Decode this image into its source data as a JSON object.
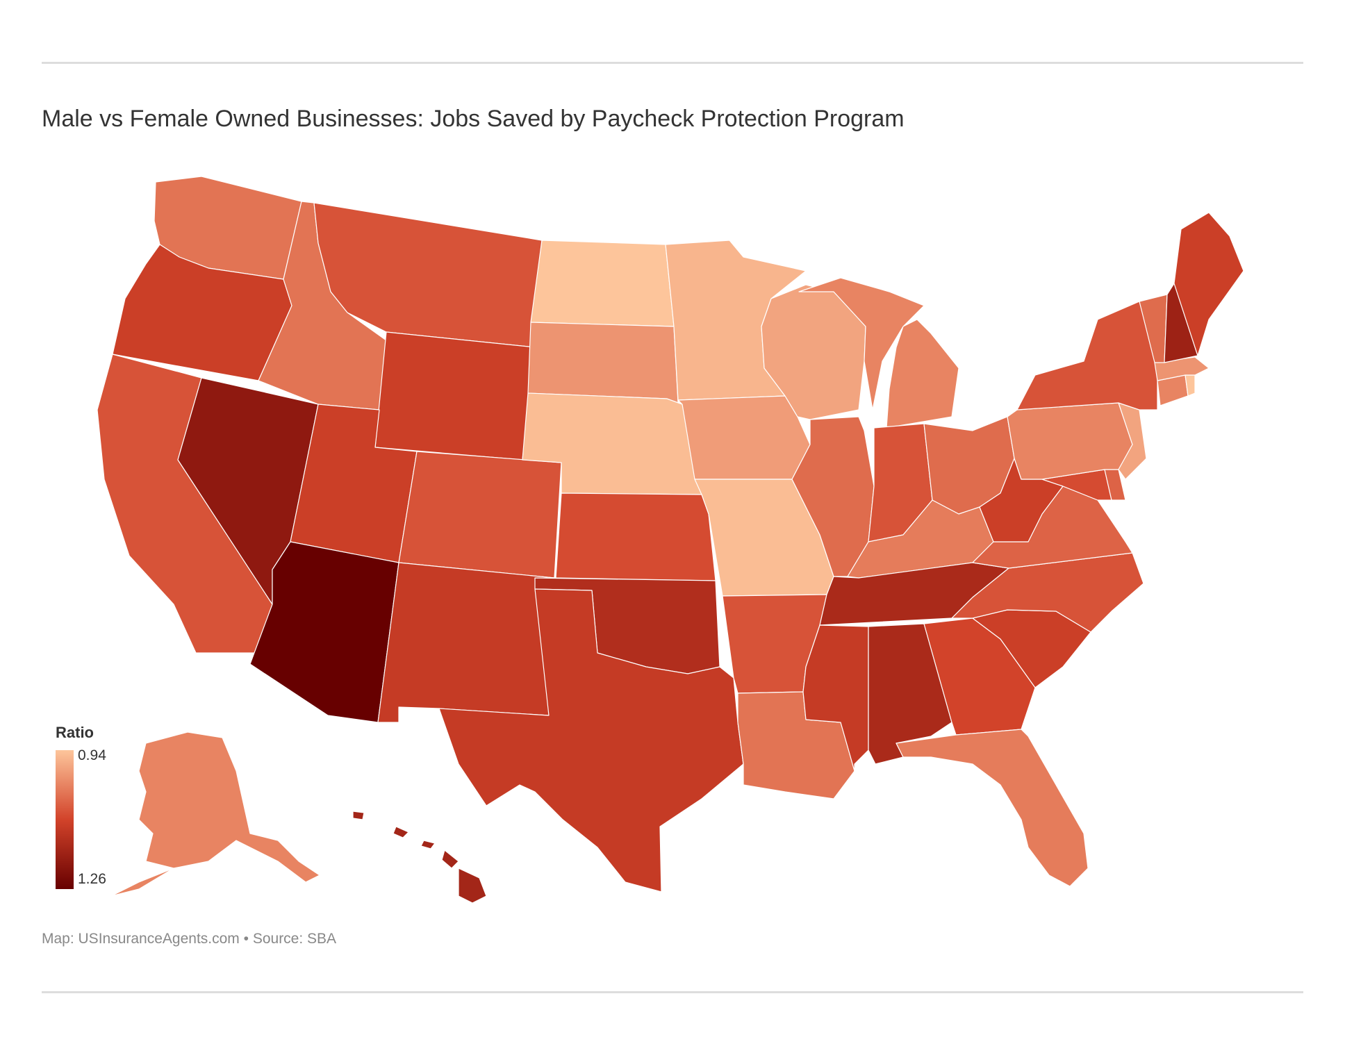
{
  "title": "Male vs Female Owned Businesses: Jobs Saved by Paycheck Protection Program",
  "source": "Map: USInsuranceAgents.com • Source: SBA",
  "legend": {
    "title": "Ratio",
    "min_label": "0.94",
    "max_label": "1.26",
    "min_color": "#fdc59b",
    "mid_color": "#d2432a",
    "max_color": "#670000"
  },
  "map_data": {
    "type": "choropleth",
    "value_name": "Ratio",
    "range": [
      0.94,
      1.26
    ],
    "states": [
      {
        "code": "WA",
        "value": 1.04
      },
      {
        "code": "OR",
        "value": 1.11
      },
      {
        "code": "CA",
        "value": 1.08
      },
      {
        "code": "NV",
        "value": 1.2
      },
      {
        "code": "ID",
        "value": 1.04
      },
      {
        "code": "MT",
        "value": 1.08
      },
      {
        "code": "WY",
        "value": 1.11
      },
      {
        "code": "UT",
        "value": 1.11
      },
      {
        "code": "AZ",
        "value": 1.26
      },
      {
        "code": "CO",
        "value": 1.08
      },
      {
        "code": "NM",
        "value": 1.12
      },
      {
        "code": "ND",
        "value": 0.94
      },
      {
        "code": "SD",
        "value": 1.0
      },
      {
        "code": "NE",
        "value": 0.95
      },
      {
        "code": "KS",
        "value": 1.09
      },
      {
        "code": "OK",
        "value": 1.15
      },
      {
        "code": "TX",
        "value": 1.12
      },
      {
        "code": "MN",
        "value": 0.96
      },
      {
        "code": "IA",
        "value": 0.99
      },
      {
        "code": "MO",
        "value": 0.95
      },
      {
        "code": "AR",
        "value": 1.08
      },
      {
        "code": "LA",
        "value": 1.04
      },
      {
        "code": "WI",
        "value": 0.98
      },
      {
        "code": "IL",
        "value": 1.05
      },
      {
        "code": "MI",
        "value": 1.02
      },
      {
        "code": "IN",
        "value": 1.08
      },
      {
        "code": "OH",
        "value": 1.05
      },
      {
        "code": "KY",
        "value": 1.03
      },
      {
        "code": "TN",
        "value": 1.16
      },
      {
        "code": "MS",
        "value": 1.12
      },
      {
        "code": "AL",
        "value": 1.16
      },
      {
        "code": "GA",
        "value": 1.1
      },
      {
        "code": "FL",
        "value": 1.03
      },
      {
        "code": "SC",
        "value": 1.11
      },
      {
        "code": "NC",
        "value": 1.08
      },
      {
        "code": "VA",
        "value": 1.06
      },
      {
        "code": "WV",
        "value": 1.11
      },
      {
        "code": "MD",
        "value": 1.09
      },
      {
        "code": "DE",
        "value": 1.06
      },
      {
        "code": "PA",
        "value": 1.02
      },
      {
        "code": "NJ",
        "value": 0.98
      },
      {
        "code": "NY",
        "value": 1.08
      },
      {
        "code": "CT",
        "value": 1.02
      },
      {
        "code": "RI",
        "value": 0.94
      },
      {
        "code": "MA",
        "value": 1.0
      },
      {
        "code": "VT",
        "value": 1.05
      },
      {
        "code": "NH",
        "value": 1.18
      },
      {
        "code": "ME",
        "value": 1.11
      },
      {
        "code": "AK",
        "value": 1.02
      },
      {
        "code": "HI",
        "value": 1.17
      }
    ]
  }
}
